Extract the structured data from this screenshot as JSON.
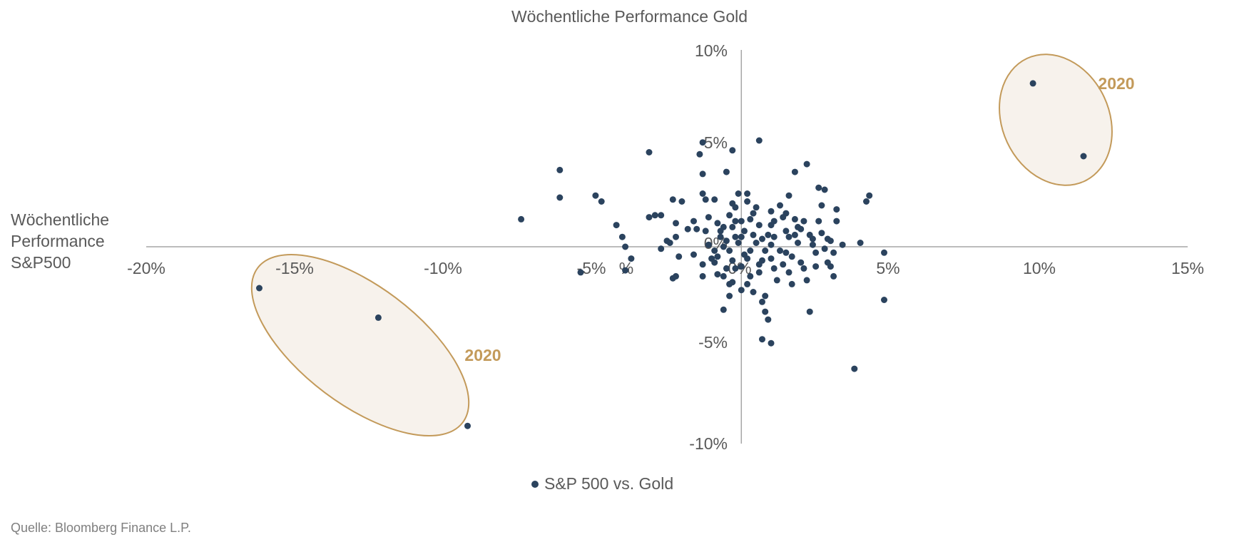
{
  "source": "Quelle: Bloomberg Finance L.P.",
  "colors": {
    "series": "#2b435e",
    "axis": "#a6a6a6",
    "tick_text": "#595959",
    "annotation": "#c39a5a",
    "annotation_fill": "#f7f2ec"
  },
  "chart_data": {
    "type": "scatter",
    "title": "",
    "xlabel_lines": [
      "Wöchentliche",
      "Performance",
      "S&P500"
    ],
    "ylabel": "Wöchentliche Performance Gold",
    "xlim": [
      -20,
      15
    ],
    "ylim": [
      -10,
      10
    ],
    "x_ticks": [
      "-20%",
      "-15%",
      "-10%",
      "-5%",
      "%",
      "0%",
      "5%",
      "10%",
      "15%"
    ],
    "y_ticks": [
      "10%",
      "5%",
      "0%",
      "-5%",
      "-10%"
    ],
    "legend_position": "bottom",
    "series": [
      {
        "name": "S&P 500 vs. Gold",
        "points": [
          [
            -16.2,
            -2.1
          ],
          [
            -12.2,
            -3.6
          ],
          [
            -9.2,
            -9.1
          ],
          [
            9.8,
            8.3
          ],
          [
            11.5,
            4.6
          ],
          [
            -7.4,
            1.4
          ],
          [
            -6.1,
            3.9
          ],
          [
            -6.1,
            2.5
          ],
          [
            -4.9,
            2.6
          ],
          [
            -4.7,
            2.3
          ],
          [
            -4.2,
            1.1
          ],
          [
            -4.0,
            0.5
          ],
          [
            -3.9,
            0.0
          ],
          [
            -3.7,
            -0.6
          ],
          [
            -3.9,
            -1.2
          ],
          [
            -5.4,
            -1.3
          ],
          [
            -3.1,
            4.8
          ],
          [
            -3.1,
            1.5
          ],
          [
            -2.9,
            1.6
          ],
          [
            -2.7,
            1.6
          ],
          [
            -2.5,
            0.3
          ],
          [
            -2.4,
            0.2
          ],
          [
            -2.3,
            2.4
          ],
          [
            -2.2,
            1.2
          ],
          [
            -2.2,
            0.5
          ],
          [
            -2.1,
            -0.5
          ],
          [
            -2.0,
            2.3
          ],
          [
            -2.3,
            -1.6
          ],
          [
            -2.2,
            -1.5
          ],
          [
            -1.6,
            1.3
          ],
          [
            -1.5,
            0.9
          ],
          [
            -1.4,
            4.7
          ],
          [
            -1.3,
            5.3
          ],
          [
            -1.3,
            3.7
          ],
          [
            -1.3,
            2.7
          ],
          [
            -1.2,
            2.4
          ],
          [
            -1.1,
            1.5
          ],
          [
            -1.2,
            0.8
          ],
          [
            -1.3,
            -0.9
          ],
          [
            -1.3,
            -1.5
          ],
          [
            -0.9,
            2.4
          ],
          [
            -0.8,
            1.2
          ],
          [
            -0.7,
            0.5
          ],
          [
            -0.8,
            -0.5
          ],
          [
            -0.9,
            -0.8
          ],
          [
            -0.8,
            -1.4
          ],
          [
            -0.6,
            1.0
          ],
          [
            -0.6,
            0.0
          ],
          [
            -0.6,
            -1.5
          ],
          [
            -0.5,
            3.8
          ],
          [
            -0.3,
            4.9
          ],
          [
            -0.3,
            2.2
          ],
          [
            -0.4,
            1.6
          ],
          [
            -0.3,
            1.0
          ],
          [
            -0.2,
            0.5
          ],
          [
            -0.4,
            -0.2
          ],
          [
            -0.3,
            -0.7
          ],
          [
            -0.6,
            -3.2
          ],
          [
            -0.4,
            -2.5
          ],
          [
            -0.4,
            -1.9
          ],
          [
            -0.1,
            2.7
          ],
          [
            -0.2,
            2.0
          ],
          [
            0.0,
            1.3
          ],
          [
            0.1,
            0.8
          ],
          [
            -0.1,
            0.2
          ],
          [
            -0.2,
            -1.1
          ],
          [
            -0.3,
            -1.8
          ],
          [
            0.0,
            -1.0
          ],
          [
            0.0,
            -2.2
          ],
          [
            0.2,
            2.7
          ],
          [
            0.2,
            2.3
          ],
          [
            0.3,
            1.4
          ],
          [
            0.4,
            0.6
          ],
          [
            0.3,
            -0.2
          ],
          [
            0.2,
            -0.6
          ],
          [
            0.3,
            -1.5
          ],
          [
            0.4,
            -2.3
          ],
          [
            0.5,
            2.0
          ],
          [
            0.6,
            1.1
          ],
          [
            0.7,
            0.4
          ],
          [
            0.7,
            -0.7
          ],
          [
            0.6,
            -1.3
          ],
          [
            0.8,
            -2.5
          ],
          [
            0.7,
            -2.8
          ],
          [
            0.6,
            5.4
          ],
          [
            1.0,
            1.8
          ],
          [
            1.0,
            1.1
          ],
          [
            1.1,
            0.5
          ],
          [
            1.0,
            0.1
          ],
          [
            1.0,
            -0.6
          ],
          [
            1.1,
            -1.1
          ],
          [
            1.2,
            -1.7
          ],
          [
            0.8,
            -3.3
          ],
          [
            0.7,
            -4.7
          ],
          [
            1.0,
            -4.9
          ],
          [
            0.9,
            -3.7
          ],
          [
            1.3,
            2.1
          ],
          [
            1.4,
            1.5
          ],
          [
            1.5,
            0.8
          ],
          [
            1.5,
            -0.3
          ],
          [
            1.4,
            -0.9
          ],
          [
            1.6,
            -1.3
          ],
          [
            1.7,
            -1.9
          ],
          [
            1.6,
            2.6
          ],
          [
            1.8,
            1.4
          ],
          [
            1.8,
            0.6
          ],
          [
            1.9,
            0.2
          ],
          [
            1.7,
            -0.5
          ],
          [
            2.0,
            -0.8
          ],
          [
            2.1,
            -1.1
          ],
          [
            2.2,
            -1.7
          ],
          [
            1.8,
            3.8
          ],
          [
            2.2,
            4.2
          ],
          [
            2.1,
            1.3
          ],
          [
            2.3,
            0.6
          ],
          [
            2.4,
            0.1
          ],
          [
            2.5,
            -0.3
          ],
          [
            2.5,
            -1.0
          ],
          [
            2.3,
            -3.3
          ],
          [
            2.6,
            3.0
          ],
          [
            2.8,
            2.9
          ],
          [
            2.6,
            1.3
          ],
          [
            2.7,
            0.7
          ],
          [
            2.8,
            -0.1
          ],
          [
            2.9,
            -0.8
          ],
          [
            2.7,
            2.1
          ],
          [
            3.2,
            1.9
          ],
          [
            3.2,
            1.3
          ],
          [
            3.0,
            0.3
          ],
          [
            3.1,
            -0.3
          ],
          [
            3.0,
            -1.0
          ],
          [
            3.1,
            -1.5
          ],
          [
            3.4,
            0.1
          ],
          [
            4.0,
            0.2
          ],
          [
            3.8,
            -6.2
          ],
          [
            4.3,
            2.6
          ],
          [
            4.2,
            2.3
          ],
          [
            4.8,
            -0.3
          ],
          [
            4.8,
            -2.7
          ],
          [
            -0.7,
            0.8
          ],
          [
            -0.5,
            0.3
          ],
          [
            0.1,
            -0.4
          ],
          [
            0.5,
            0.2
          ],
          [
            0.9,
            0.6
          ],
          [
            1.3,
            -0.2
          ],
          [
            -1.1,
            0.1
          ],
          [
            -1.6,
            -0.4
          ],
          [
            -0.9,
            -0.2
          ],
          [
            1.6,
            0.5
          ],
          [
            2.0,
            0.9
          ],
          [
            -2.7,
            -0.1
          ],
          [
            0.4,
            1.7
          ],
          [
            0.0,
            0.5
          ],
          [
            -0.5,
            -1.1
          ],
          [
            0.2,
            -1.9
          ],
          [
            1.9,
            1.0
          ],
          [
            2.4,
            0.4
          ],
          [
            -1.8,
            0.9
          ],
          [
            0.8,
            -0.2
          ],
          [
            1.1,
            1.3
          ],
          [
            -1.0,
            -0.6
          ],
          [
            0.6,
            -0.9
          ],
          [
            1.5,
            1.7
          ],
          [
            -0.2,
            1.3
          ],
          [
            2.9,
            0.4
          ]
        ]
      }
    ],
    "annotations": [
      {
        "label": "2020"
      },
      {
        "label": "2020"
      }
    ]
  }
}
